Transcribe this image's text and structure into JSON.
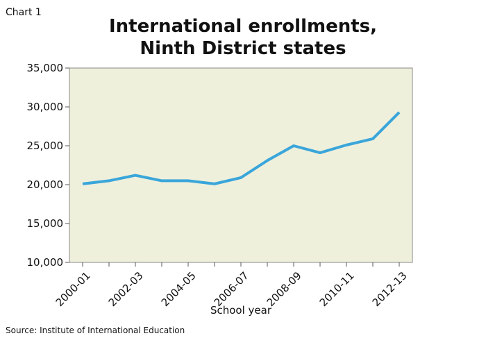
{
  "chart_data": {
    "type": "line",
    "label": "Chart 1",
    "title": [
      "International enrollments,",
      "Ninth District states"
    ],
    "xlabel": "School year",
    "source": "Source: Institute of International  Education",
    "categories": [
      "2000-01",
      null,
      "2002-03",
      null,
      "2004-05",
      null,
      "2006-07",
      null,
      "2008-09",
      null,
      "2010-11",
      null,
      "2012-13"
    ],
    "values": [
      20100,
      20500,
      21200,
      20500,
      20500,
      20100,
      20900,
      23100,
      25000,
      24100,
      25100,
      25900,
      29300
    ],
    "color": "#3aa6da",
    "background": "#eff0dc",
    "ylim": [
      10000,
      35000
    ],
    "yticks": [
      {
        "value": 10000,
        "label": "10,000"
      },
      {
        "value": 15000,
        "label": "15,000"
      },
      {
        "value": 20000,
        "label": "20,000"
      },
      {
        "value": 25000,
        "label": "25,000"
      },
      {
        "value": 30000,
        "label": "30,000"
      },
      {
        "value": 35000,
        "label": "35,000"
      }
    ]
  }
}
